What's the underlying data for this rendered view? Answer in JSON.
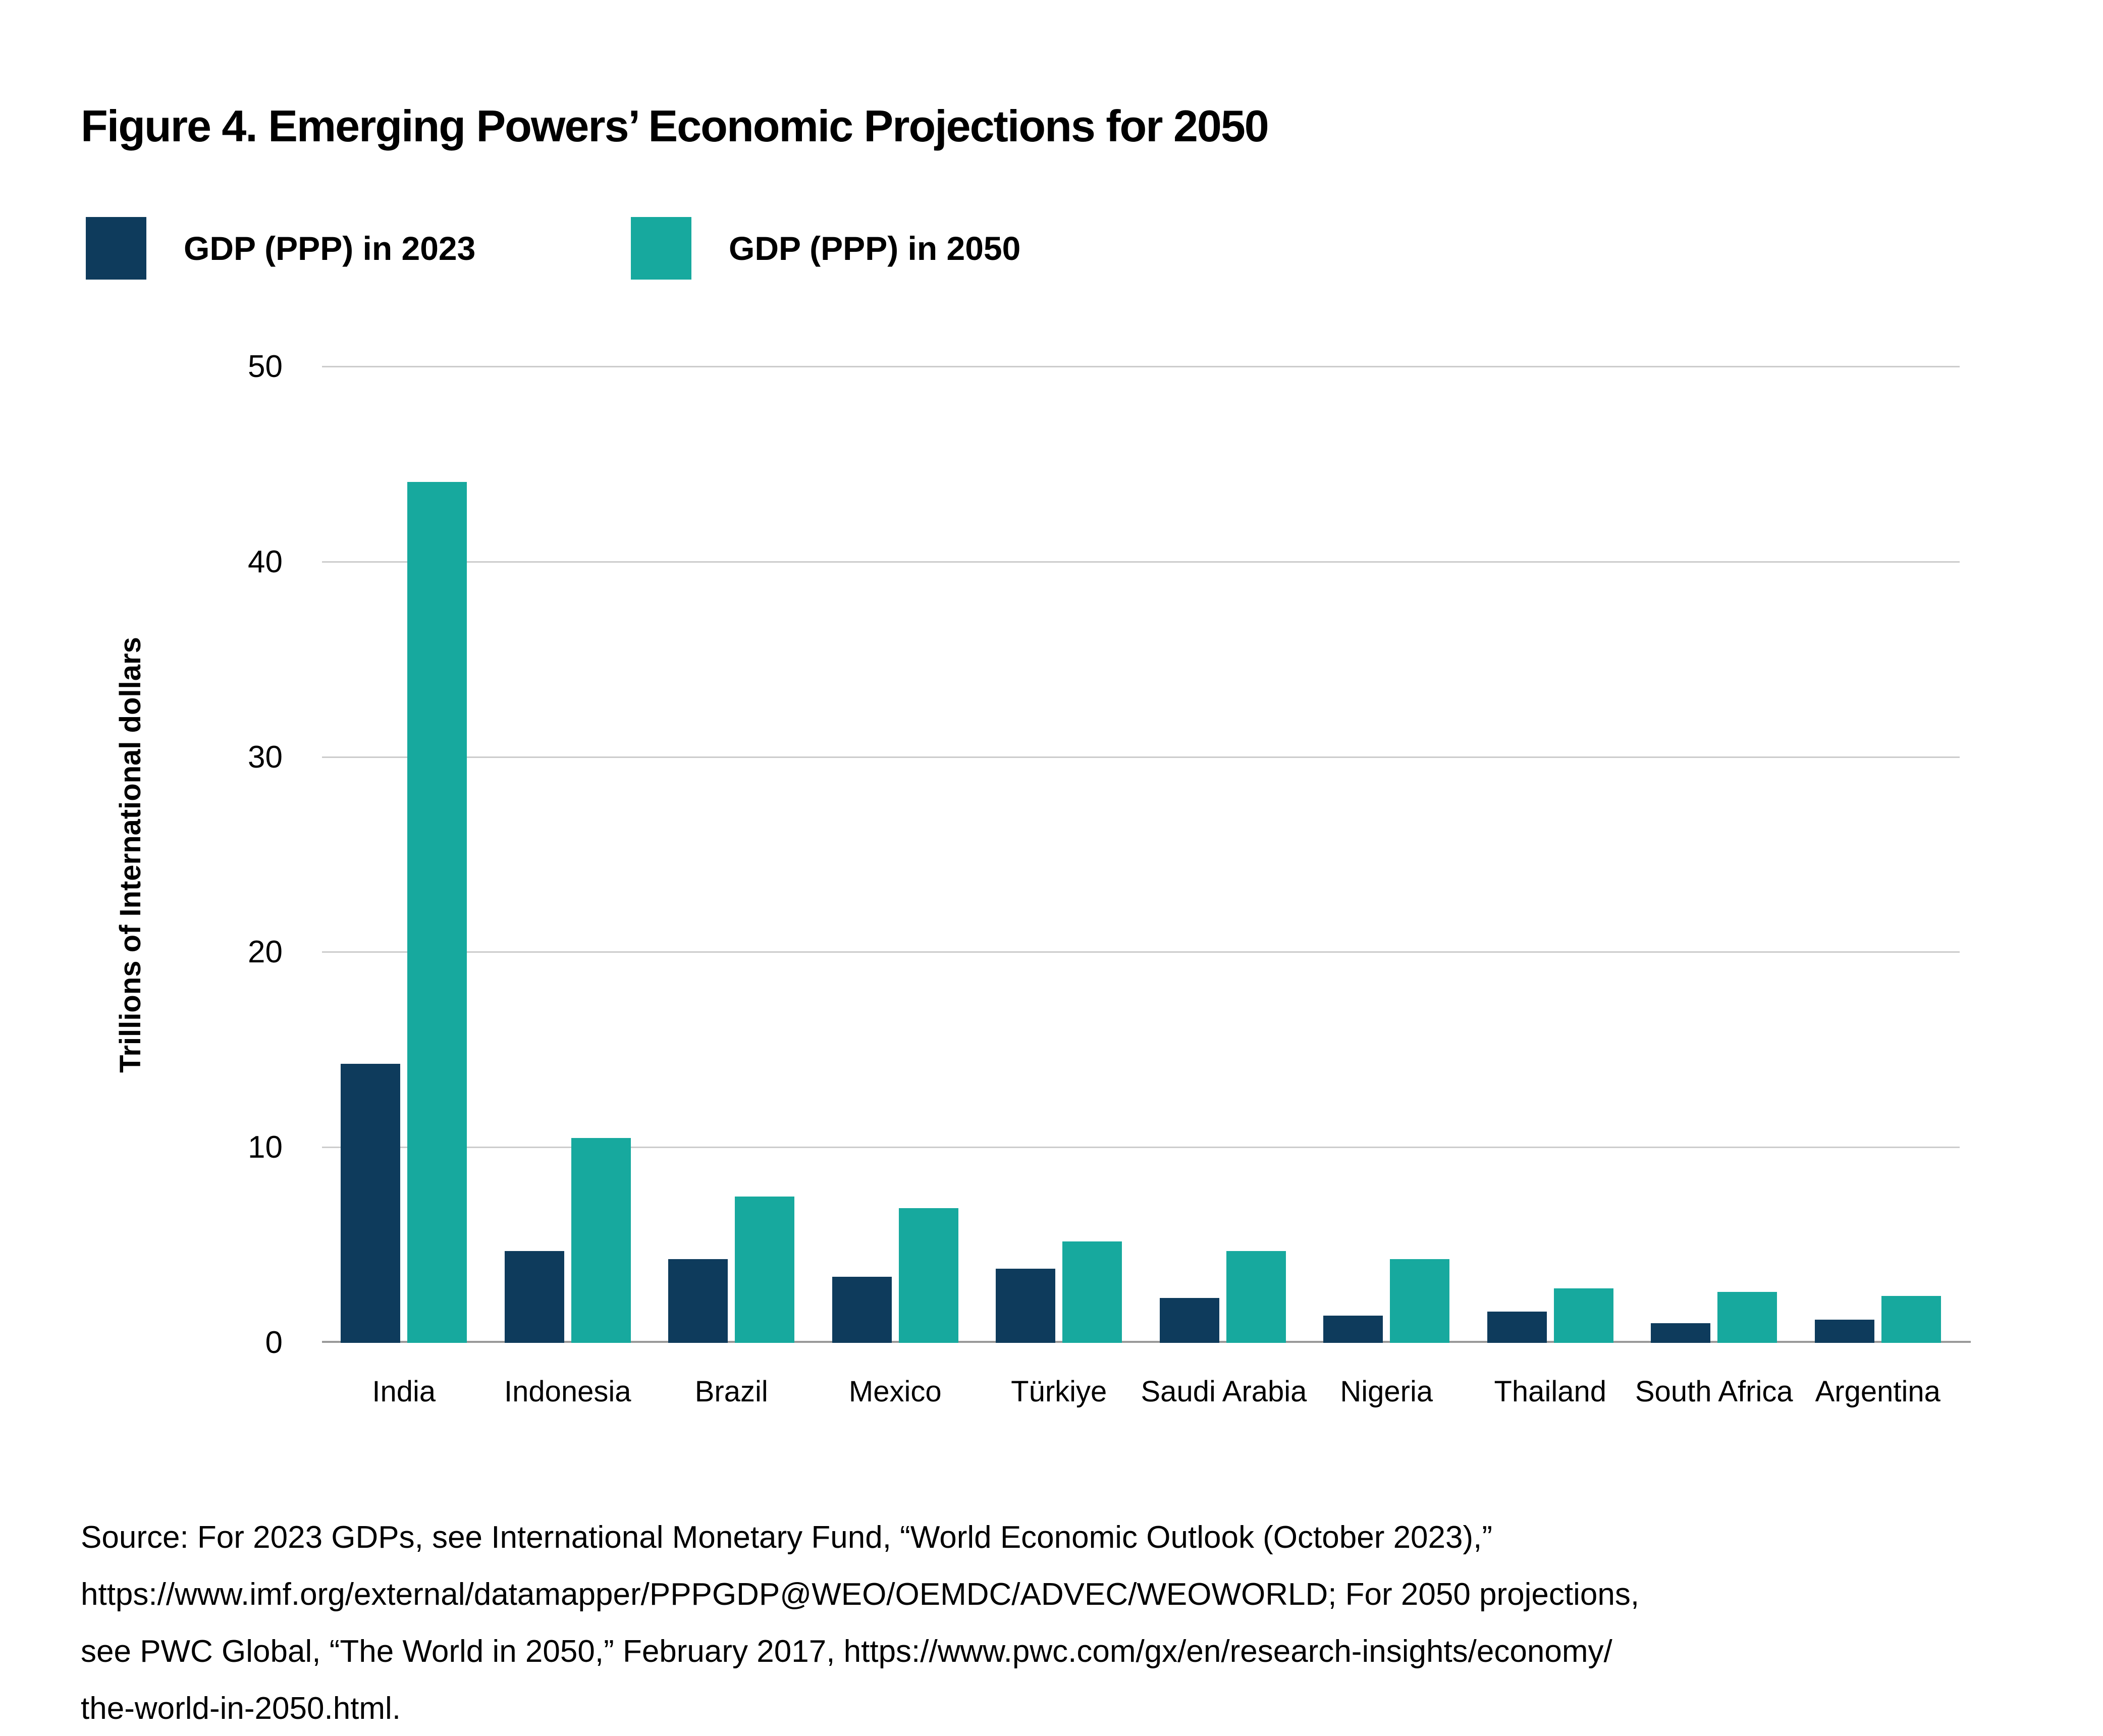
{
  "figure": {
    "title": "Figure 4. Emerging Powers’ Economic Projections for 2050"
  },
  "legend": {
    "items": [
      {
        "label": "GDP (PPP) in 2023",
        "color": "#0e3b5c"
      },
      {
        "label": "GDP (PPP) in 2050",
        "color": "#17a99e"
      }
    ]
  },
  "chart_data": {
    "type": "bar",
    "categories": [
      "India",
      "Indonesia",
      "Brazil",
      "Mexico",
      "Türkiye",
      "Saudi Arabia",
      "Nigeria",
      "Thailand",
      "South Africa",
      "Argentina"
    ],
    "series": [
      {
        "name": "GDP (PPP) in 2023",
        "color": "#0e3b5c",
        "values": [
          14.3,
          4.7,
          4.3,
          3.4,
          3.8,
          2.3,
          1.4,
          1.6,
          1.0,
          1.2
        ]
      },
      {
        "name": "GDP (PPP) in 2050",
        "color": "#17a99e",
        "values": [
          44.1,
          10.5,
          7.5,
          6.9,
          5.2,
          4.7,
          4.3,
          2.8,
          2.6,
          2.4
        ]
      }
    ],
    "title": "Figure 4. Emerging Powers’ Economic Projections for 2050",
    "xlabel": "",
    "ylabel": "Trillions of International dollars",
    "ylim": [
      0,
      50
    ],
    "yticks": [
      0,
      10,
      20,
      30,
      40,
      50
    ],
    "grid": true,
    "legend_position": "top-left"
  },
  "source": {
    "lines": [
      "Source: For 2023 GDPs, see International Monetary Fund, “World Economic Outlook (October 2023),”",
      "https://www.imf.org/external/datamapper/PPPGDP@WEO/OEMDC/ADVEC/WEOWORLD; For 2050 projections,",
      "see PWC Global, “The World in 2050,” February 2017, https://www.pwc.com/gx/en/research-insights/economy/",
      "the-world-in-2050.html."
    ]
  },
  "colors": {
    "gridline": "#cccccc",
    "baseline": "#999999",
    "text": "#000000"
  }
}
